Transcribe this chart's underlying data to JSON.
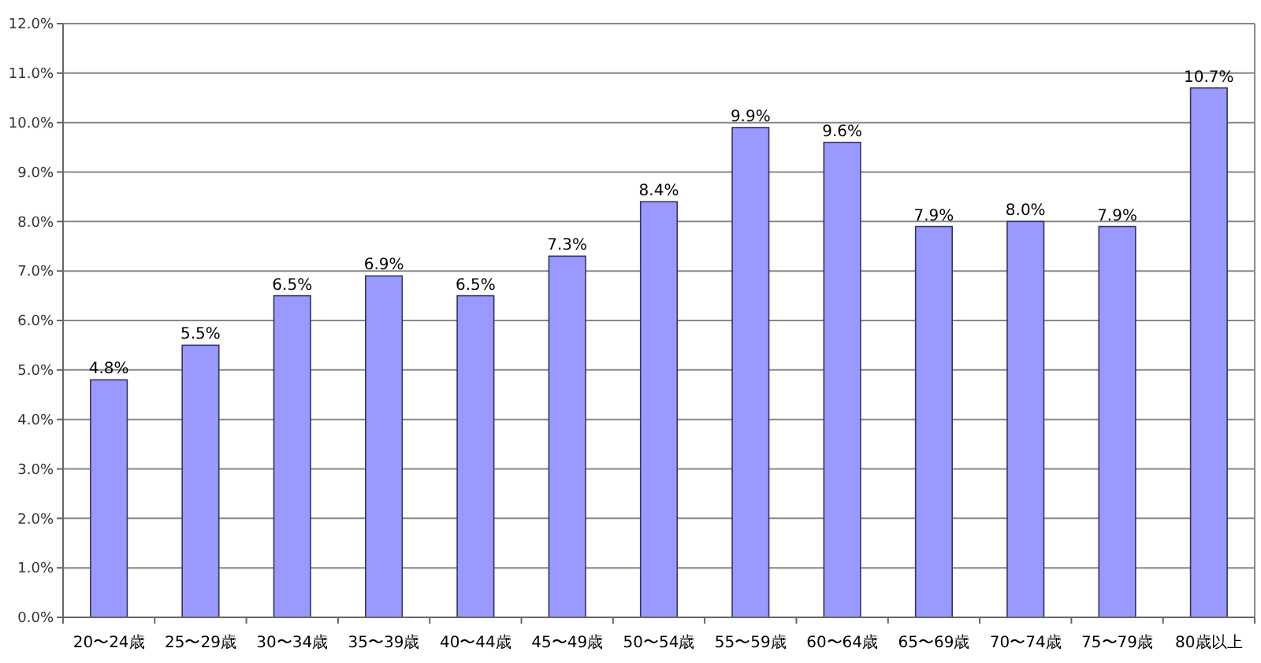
{
  "chart_data": {
    "type": "bar",
    "categories": [
      "20〜24歳",
      "25〜29歳",
      "30〜34歳",
      "35〜39歳",
      "40〜44歳",
      "45〜49歳",
      "50〜54歳",
      "55〜59歳",
      "60〜64歳",
      "65〜69歳",
      "70〜74歳",
      "75〜79歳",
      "80歳以上"
    ],
    "values": [
      4.8,
      5.5,
      6.5,
      6.9,
      6.5,
      7.3,
      8.4,
      9.9,
      9.6,
      7.9,
      8.0,
      7.9,
      10.7
    ],
    "value_labels": [
      "4.8%",
      "5.5%",
      "6.5%",
      "6.9%",
      "6.5%",
      "7.3%",
      "8.4%",
      "9.9%",
      "9.6%",
      "7.9%",
      "8.0%",
      "7.9%",
      "10.7%"
    ],
    "color": "#9999ff",
    "ylim": [
      0,
      12
    ],
    "yticks": [
      {
        "value": 0,
        "label": "0.0%"
      },
      {
        "value": 1,
        "label": "1.0%"
      },
      {
        "value": 2,
        "label": "2.0%"
      },
      {
        "value": 3,
        "label": "3.0%"
      },
      {
        "value": 4,
        "label": "4.0%"
      },
      {
        "value": 5,
        "label": "5.0%"
      },
      {
        "value": 6,
        "label": "6.0%"
      },
      {
        "value": 7,
        "label": "7.0%"
      },
      {
        "value": 8,
        "label": "8.0%"
      },
      {
        "value": 9,
        "label": "9.0%"
      },
      {
        "value": 10,
        "label": "10.0%"
      },
      {
        "value": 11,
        "label": "11.0%"
      },
      {
        "value": 12,
        "label": "12.0%"
      }
    ],
    "grid": "y"
  }
}
